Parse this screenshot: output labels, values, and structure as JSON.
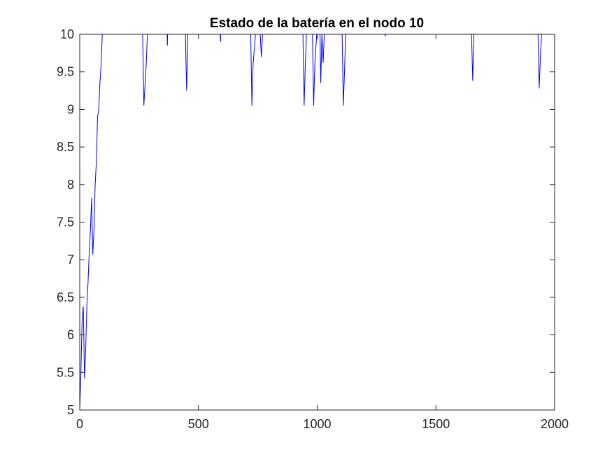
{
  "colors": {
    "line": "#0000ff",
    "axes": "#262626",
    "background": "#ffffff"
  },
  "chart_data": {
    "type": "line",
    "title": "Estado de la batería en el nodo 10",
    "xlabel": "",
    "ylabel": "",
    "xlim": [
      0,
      2000
    ],
    "ylim": [
      5,
      10
    ],
    "xticks": [
      0,
      500,
      1000,
      1500,
      2000
    ],
    "xtick_labels": [
      "0",
      "500",
      "1000",
      "1500",
      "2000"
    ],
    "yticks": [
      5,
      5.5,
      6,
      6.5,
      7,
      7.5,
      8,
      8.5,
      9,
      9.5,
      10
    ],
    "ytick_labels": [
      "5",
      "5.5",
      "6",
      "6.5",
      "7",
      "7.5",
      "8",
      "8.5",
      "9",
      "9.5",
      "10"
    ],
    "grid": false,
    "legend": "none",
    "series": [
      {
        "x": [
          0,
          5,
          10,
          15,
          20,
          25,
          30,
          35,
          40,
          45,
          50,
          55,
          60,
          65,
          70,
          75,
          80,
          85,
          90,
          95,
          100,
          105,
          110,
          115,
          120,
          265,
          270,
          280,
          285,
          290,
          368,
          369,
          370,
          371,
          445,
          450,
          455,
          460,
          465,
          592,
          593,
          594,
          595,
          596,
          720,
          725,
          730,
          740,
          750,
          760,
          765,
          770,
          775,
          940,
          945,
          950,
          955,
          960,
          980,
          985,
          990,
          998,
          1005,
          1012,
          1015,
          1020,
          1025,
          1030,
          1035,
          1040,
          1105,
          1110,
          1115,
          1120,
          1125,
          1285,
          1286,
          1287,
          1650,
          1655,
          1660,
          1665,
          1670,
          1930,
          1935,
          1940,
          1945,
          1950,
          2000
        ],
        "values": [
          5.0,
          5.5,
          6.2,
          6.38,
          5.42,
          5.8,
          6.4,
          6.7,
          7.1,
          7.4,
          7.82,
          7.07,
          7.4,
          8.0,
          8.3,
          8.9,
          9.0,
          9.35,
          9.6,
          10.0,
          10.0,
          10.0,
          10.0,
          10.0,
          10.0,
          10.0,
          9.05,
          9.6,
          10.0,
          10.0,
          10.0,
          9.85,
          10.0,
          10.0,
          10.0,
          9.25,
          10.0,
          10.0,
          10.0,
          10.0,
          9.9,
          10.0,
          10.0,
          10.0,
          10.0,
          9.05,
          9.6,
          10.0,
          10.0,
          10.0,
          9.7,
          10.0,
          10.0,
          10.0,
          9.05,
          9.6,
          10.0,
          10.0,
          10.0,
          9.05,
          9.6,
          10.0,
          10.0,
          10.0,
          9.35,
          10.0,
          9.62,
          10.0,
          10.0,
          10.0,
          10.0,
          9.05,
          9.5,
          10.0,
          10.0,
          10.0,
          9.97,
          10.0,
          10.0,
          9.38,
          10.0,
          10.0,
          10.0,
          10.0,
          9.28,
          9.7,
          10.0,
          10.0,
          10.0
        ]
      }
    ]
  }
}
